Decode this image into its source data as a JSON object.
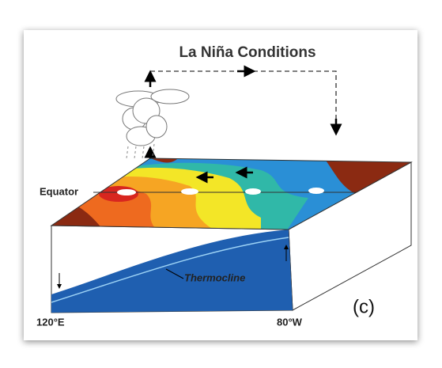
{
  "title": "La Niña Conditions",
  "labels": {
    "equator": "Equator",
    "thermocline": "Thermocline",
    "west": "120°E",
    "east": "80°W",
    "panel": "(c)"
  }
}
